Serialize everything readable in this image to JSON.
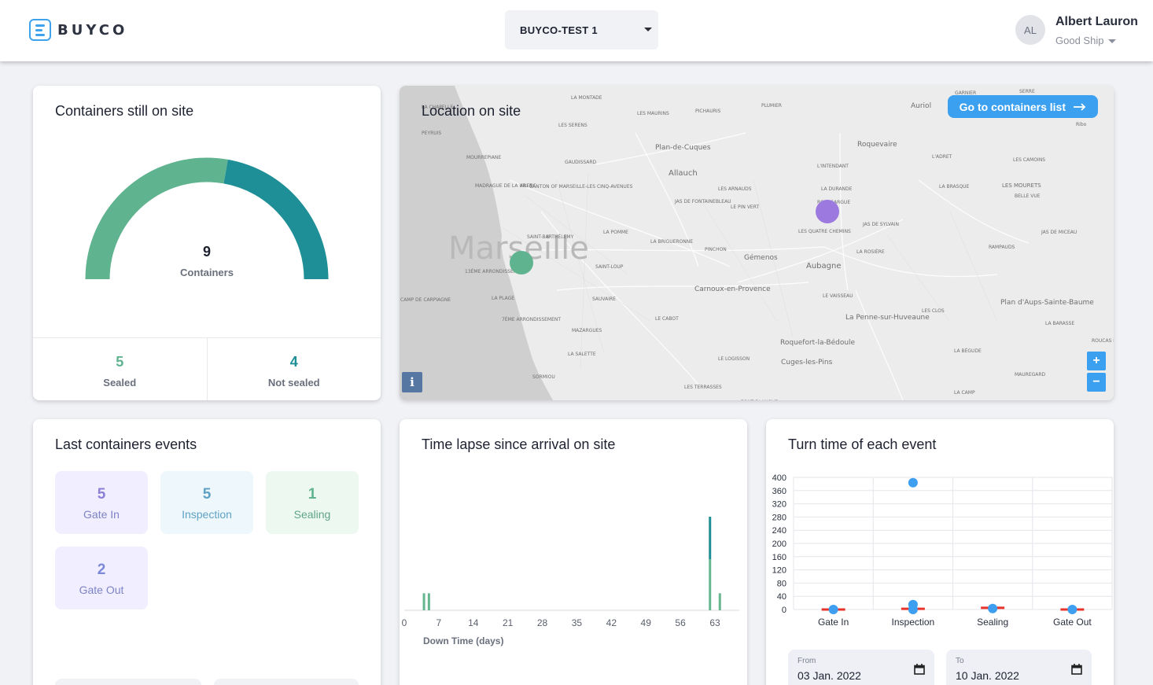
{
  "app": {
    "logo_text": "BUYCO"
  },
  "header": {
    "site_selector": "BUYCO-TEST 1",
    "user": {
      "initials": "AL",
      "name": "Albert Lauron",
      "company": "Good Ship"
    }
  },
  "containers_on_site": {
    "title": "Containers still on site",
    "total": "9",
    "total_label": "Containers",
    "sealed": {
      "value": "5",
      "label": "Sealed"
    },
    "not_sealed": {
      "value": "4",
      "label": "Not sealed"
    },
    "colors": {
      "sealed": "#5fb38f",
      "not_sealed": "#1e8f96"
    }
  },
  "map": {
    "title": "Location on site",
    "button_label": "Go to containers list",
    "zoom_in": "+",
    "zoom_out": "−",
    "info": "i",
    "place_labels": [
      "Marseille",
      "Allauch",
      "Plan-de-Cuques",
      "Aubagne",
      "Gémenos",
      "Roquevaire",
      "Auriol",
      "La Penne-sur-Huveaune",
      "Carnoux-en-Provence",
      "Roquefort-la-Bédoule",
      "Cuges-les-Pins",
      "Plan d'Aups-Sainte-Baume",
      "LES MOURETS",
      "LA MONTADE",
      "LES MAURINS",
      "PICHAURIS",
      "PLUMIER",
      "GARNIER",
      "SERRE",
      "LES SERENS",
      "GAUDISSARD",
      "L'INTENDANT",
      "L'ADRET",
      "LES CAMOINS",
      "LES ARNAUDS",
      "LA DURANDE",
      "ROUSSARGUE",
      "LA BRASQUE",
      "BELLE VUE",
      "JAS DE FONTAINEBLEAU",
      "LE PIN VERT",
      "LES QUATRE CHEMINS",
      "JAS DE SYLVAIN",
      "JAS DE MICEAU",
      "RAMPAUDS",
      "LA BRIGUERONNE",
      "PINCHON",
      "LA ROSIÈRE",
      "LA POMME",
      "SAINT-LOUP",
      "SAUVAIRE",
      "LE VAISSEAU",
      "LES CLOS",
      "LA BARASSE",
      "LE CABOT",
      "MAZARGUES",
      "LA SALETTE",
      "SORMIOU",
      "CAMP DE CARPIAGNE",
      "LE LOGISSON",
      "LES TERRASSES",
      "FONT BLANCHE",
      "LA BÉGUDE",
      "MAUREGARD",
      "LA CAMP",
      "ROUCAS BLANC",
      "LA PLAGE",
      "7ÈME ARRONDISSEMENT",
      "13ÈME ARRONDISSEMENT",
      "CANTON OF MARSEILLE-LES CINQ-AVENUES",
      "SAINT-BARTHÉLEMY",
      "ARENC",
      "MADRAGUE DE LA VILLE",
      "MOURREPIANE",
      "PEYRUIS",
      "LA CHAPELLE",
      "Ribo"
    ],
    "markers": [
      {
        "name": "site-1",
        "color": "#5fb38f"
      },
      {
        "name": "site-2",
        "color": "#9b79df"
      }
    ]
  },
  "events": {
    "title": "Last containers events",
    "tiles": [
      {
        "value": "5",
        "label": "Gate In",
        "bg": "#f1efff",
        "fg": "#8b7fd6",
        "label_fg": "#7d83c5"
      },
      {
        "value": "5",
        "label": "Inspection",
        "bg": "#eef7fb",
        "fg": "#5fa2c6",
        "label_fg": "#5fa2c6"
      },
      {
        "value": "1",
        "label": "Sealing",
        "bg": "#edf8f1",
        "fg": "#5fb38f",
        "label_fg": "#5fa389"
      },
      {
        "value": "2",
        "label": "Gate Out",
        "bg": "#f1efff",
        "fg": "#7c89d8",
        "label_fg": "#7d83c5"
      }
    ]
  },
  "timelapse": {
    "title": "Time lapse since arrival on site",
    "xlabel": "Down Time (days)"
  },
  "turntime": {
    "title": "Turn time of each event",
    "from": {
      "label": "From",
      "value": "03 Jan. 2022"
    },
    "to": {
      "label": "To",
      "value": "10 Jan. 2022"
    }
  },
  "chart_data": [
    {
      "type": "bar",
      "title": "Time lapse since arrival on site",
      "xlabel": "Down Time (days)",
      "ylabel": "",
      "xlim": [
        0,
        70
      ],
      "x_ticks": [
        0,
        7,
        14,
        21,
        28,
        35,
        42,
        49,
        56,
        63
      ],
      "series": [
        {
          "values": [
            {
              "x": 4,
              "y": 2
            },
            {
              "x": 5,
              "y": 2
            },
            {
              "x": 62,
              "y": 6
            },
            {
              "x": 64,
              "y": 2
            }
          ],
          "color": "#66b68f"
        },
        {
          "values": [
            {
              "x": 4,
              "y": 0
            },
            {
              "x": 5,
              "y": 0
            },
            {
              "x": 62,
              "y": 5
            },
            {
              "x": 64,
              "y": 0
            }
          ],
          "color": "#1e8f96"
        }
      ],
      "ylim": [
        0,
        11
      ]
    },
    {
      "type": "scatter",
      "title": "Turn time of each event",
      "categories": [
        "Gate In",
        "Inspection",
        "Sealing",
        "Gate Out"
      ],
      "ylim": [
        0,
        400
      ],
      "y_ticks": [
        0,
        40,
        80,
        120,
        160,
        200,
        240,
        280,
        320,
        360,
        400
      ],
      "points": [
        {
          "category": "Gate In",
          "y": 0
        },
        {
          "category": "Inspection",
          "y": 384
        },
        {
          "category": "Inspection",
          "y": 15
        },
        {
          "category": "Inspection",
          "y": 0
        },
        {
          "category": "Sealing",
          "y": 3
        },
        {
          "category": "Gate Out",
          "y": 0
        }
      ],
      "medians": [
        {
          "category": "Gate In",
          "y": 0
        },
        {
          "category": "Inspection",
          "y": 2
        },
        {
          "category": "Sealing",
          "y": 5
        },
        {
          "category": "Gate Out",
          "y": 0
        }
      ],
      "point_color": "#3e9ef0",
      "median_color": "#e8332a",
      "grid": true
    }
  ]
}
